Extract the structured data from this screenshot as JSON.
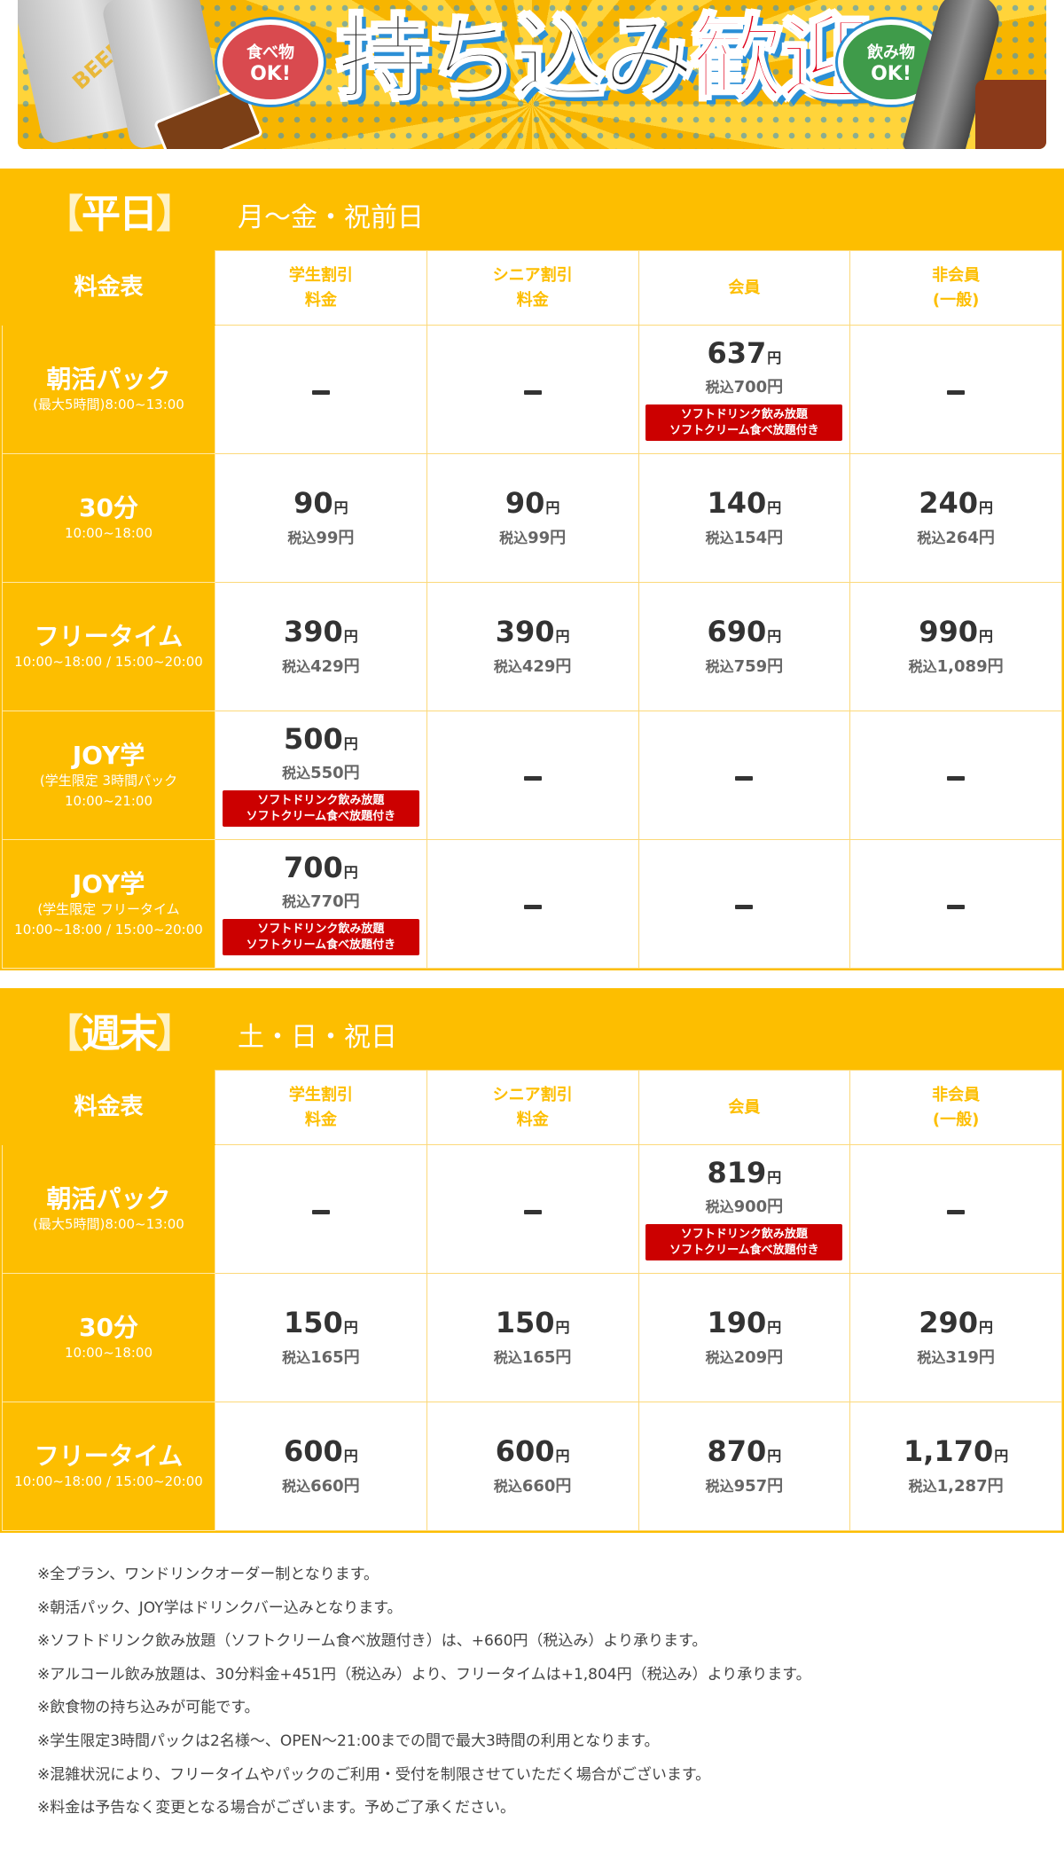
{
  "banner": {
    "title_black": "持ち込み",
    "title_red": "歓迎!",
    "food_bubble": {
      "line1": "食べ物",
      "line2": "OK!"
    },
    "drink_bubble": {
      "line1": "飲み物",
      "line2": "OK!"
    },
    "can_label": "BEER"
  },
  "colors": {
    "brand_yellow": "#fdbe00",
    "badge_red": "#cc0000",
    "price_text": "#333333",
    "tax_text": "#666666"
  },
  "columns": [
    {
      "line1": "学生割引",
      "line2": "料金"
    },
    {
      "line1": "シニア割引",
      "line2": "料金"
    },
    {
      "line1": "会員",
      "line2": ""
    },
    {
      "line1": "非会員",
      "line2": "(一般)"
    }
  ],
  "corner_label": "料金表",
  "badge_text": {
    "line1": "ソフトドリンク飲み放題",
    "line2": "ソフトクリーム食べ放題付き"
  },
  "weekday": {
    "title_open": "【",
    "title": "平日",
    "title_close": "】",
    "subtitle": "月〜金・祝前日",
    "rows": [
      {
        "name": "朝活パック",
        "sub1": "(最大5時間)8:00~13:00",
        "sub2": "",
        "cells": [
          {
            "dash": true
          },
          {
            "dash": true
          },
          {
            "price": "637",
            "yen": "円",
            "tax_label": "税込",
            "tax": "700円",
            "badge": true
          },
          {
            "dash": true
          }
        ]
      },
      {
        "name": "30分",
        "sub1": "10:00~18:00",
        "sub2": "",
        "cells": [
          {
            "price": "90",
            "yen": "円",
            "tax_label": "税込",
            "tax": "99円"
          },
          {
            "price": "90",
            "yen": "円",
            "tax_label": "税込",
            "tax": "99円"
          },
          {
            "price": "140",
            "yen": "円",
            "tax_label": "税込",
            "tax": "154円"
          },
          {
            "price": "240",
            "yen": "円",
            "tax_label": "税込",
            "tax": "264円"
          }
        ]
      },
      {
        "name": "フリータイム",
        "sub1": "10:00~18:00 / 15:00~20:00",
        "sub2": "",
        "cells": [
          {
            "price": "390",
            "yen": "円",
            "tax_label": "税込",
            "tax": "429円"
          },
          {
            "price": "390",
            "yen": "円",
            "tax_label": "税込",
            "tax": "429円"
          },
          {
            "price": "690",
            "yen": "円",
            "tax_label": "税込",
            "tax": "759円"
          },
          {
            "price": "990",
            "yen": "円",
            "tax_label": "税込",
            "tax": "1,089円"
          }
        ]
      },
      {
        "name": "JOY学",
        "sub1": "(学生限定 3時間パック",
        "sub2": "10:00~21:00",
        "cells": [
          {
            "price": "500",
            "yen": "円",
            "tax_label": "税込",
            "tax": "550円",
            "badge": true
          },
          {
            "dash": true
          },
          {
            "dash": true
          },
          {
            "dash": true
          }
        ]
      },
      {
        "name": "JOY学",
        "sub1": "(学生限定 フリータイム",
        "sub2": "10:00~18:00 / 15:00~20:00",
        "cells": [
          {
            "price": "700",
            "yen": "円",
            "tax_label": "税込",
            "tax": "770円",
            "badge": true
          },
          {
            "dash": true
          },
          {
            "dash": true
          },
          {
            "dash": true
          }
        ]
      }
    ]
  },
  "weekend": {
    "title_open": "【",
    "title": "週末",
    "title_close": "】",
    "subtitle": "土・日・祝日",
    "rows": [
      {
        "name": "朝活パック",
        "sub1": "(最大5時間)8:00~13:00",
        "sub2": "",
        "cells": [
          {
            "dash": true
          },
          {
            "dash": true
          },
          {
            "price": "819",
            "yen": "円",
            "tax_label": "税込",
            "tax": "900円",
            "badge": true
          },
          {
            "dash": true
          }
        ]
      },
      {
        "name": "30分",
        "sub1": "10:00~18:00",
        "sub2": "",
        "cells": [
          {
            "price": "150",
            "yen": "円",
            "tax_label": "税込",
            "tax": "165円"
          },
          {
            "price": "150",
            "yen": "円",
            "tax_label": "税込",
            "tax": "165円"
          },
          {
            "price": "190",
            "yen": "円",
            "tax_label": "税込",
            "tax": "209円"
          },
          {
            "price": "290",
            "yen": "円",
            "tax_label": "税込",
            "tax": "319円"
          }
        ]
      },
      {
        "name": "フリータイム",
        "sub1": "10:00~18:00 / 15:00~20:00",
        "sub2": "",
        "cells": [
          {
            "price": "600",
            "yen": "円",
            "tax_label": "税込",
            "tax": "660円"
          },
          {
            "price": "600",
            "yen": "円",
            "tax_label": "税込",
            "tax": "660円"
          },
          {
            "price": "870",
            "yen": "円",
            "tax_label": "税込",
            "tax": "957円"
          },
          {
            "price": "1,170",
            "yen": "円",
            "tax_label": "税込",
            "tax": "1,287円"
          }
        ]
      }
    ]
  },
  "notes": [
    "※全プラン、ワンドリンクオーダー制となります。",
    "※朝活パック、JOY学はドリンクバー込みとなります。",
    "※ソフトドリンク飲み放題（ソフトクリーム食べ放題付き）は、+660円（税込み）より承ります。",
    "※アルコール飲み放題は、30分料金+451円（税込み）より、フリータイムは+1,804円（税込み）より承ります。",
    "※飲食物の持ち込みが可能です。",
    "※学生限定3時間パックは2名様〜、OPEN〜21:00までの間で最大3時間の利用となります。",
    "※混雑状況により、フリータイムやパックのご利用・受付を制限させていただく場合がございます。",
    "※料金は予告なく変更となる場合がございます。予めご了承ください。"
  ]
}
